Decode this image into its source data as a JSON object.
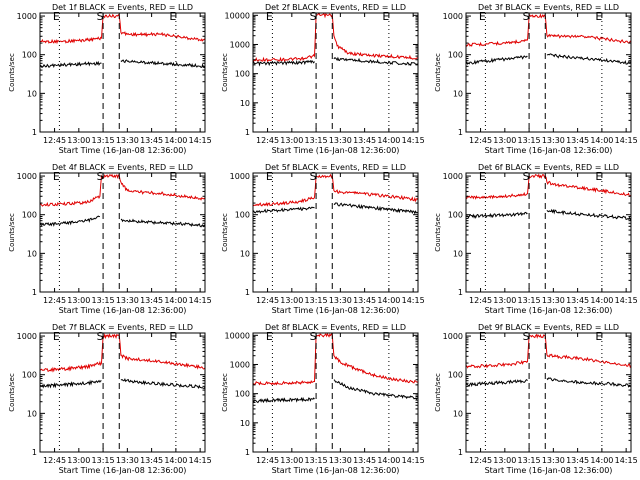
{
  "chart_data": [
    {
      "type": "line",
      "title": "Det 1f BLACK = Events, RED = LLD",
      "xlabel": "Start Time (16-Jan-08 12:36:00)",
      "ylabel": "Counts/sec",
      "x_ticks": [
        "12:45",
        "13:00",
        "13:15",
        "13:30",
        "13:45",
        "14:00",
        "14:15"
      ],
      "y_ticks": [
        "1",
        "10",
        "100",
        "1000"
      ],
      "xlim": [
        "12:36",
        "14:18"
      ],
      "ylim": [
        1,
        1200
      ],
      "y_scale": "log",
      "grid": false,
      "markers": [
        {
          "label": "E",
          "time": "12:48",
          "style": "dotted"
        },
        {
          "label": "S",
          "time": "13:15",
          "style": "dashed"
        },
        {
          "label": "",
          "time": "13:25",
          "style": "dashed"
        },
        {
          "label": "E",
          "time": "14:00",
          "style": "dotted"
        }
      ],
      "series": [
        {
          "name": "LLD",
          "color": "#e00000",
          "x": [
            "12:36",
            "12:50",
            "13:05",
            "13:14",
            "13:15",
            "13:25",
            "13:26",
            "13:30",
            "13:40",
            "13:50",
            "14:00",
            "14:10",
            "14:18"
          ],
          "values": [
            220,
            220,
            240,
            270,
            1000,
            1000,
            380,
            340,
            330,
            340,
            300,
            260,
            240
          ]
        },
        {
          "name": "Events",
          "color": "#000000",
          "x": [
            "12:36",
            "12:50",
            "13:05",
            "13:14",
            "13:25",
            "13:26",
            "13:35",
            "13:50",
            "14:05",
            "14:18"
          ],
          "values": [
            50,
            55,
            58,
            60,
            null,
            70,
            65,
            60,
            55,
            50
          ]
        }
      ]
    },
    {
      "type": "line",
      "title": "Det 2f BLACK = Events, RED = LLD",
      "xlabel": "Start Time (16-Jan-08 12:36:00)",
      "ylabel": "Counts/sec",
      "x_ticks": [
        "12:45",
        "13:00",
        "13:15",
        "13:30",
        "13:45",
        "14:00",
        "14:15"
      ],
      "y_ticks": [
        "1",
        "10",
        "100",
        "1000",
        "10000"
      ],
      "xlim": [
        "12:36",
        "14:18"
      ],
      "ylim": [
        1,
        12000
      ],
      "y_scale": "log",
      "grid": false,
      "markers": [
        {
          "label": "E",
          "time": "12:48",
          "style": "dotted"
        },
        {
          "label": "S",
          "time": "13:15",
          "style": "dashed"
        },
        {
          "label": "",
          "time": "13:25",
          "style": "dashed"
        },
        {
          "label": "E",
          "time": "14:00",
          "style": "dotted"
        }
      ],
      "series": [
        {
          "name": "LLD",
          "color": "#e00000",
          "x": [
            "12:36",
            "12:50",
            "13:05",
            "13:14",
            "13:15",
            "13:25",
            "13:26",
            "13:28",
            "13:35",
            "13:50",
            "14:05",
            "14:18"
          ],
          "values": [
            300,
            300,
            320,
            400,
            10000,
            10000,
            2000,
            900,
            500,
            420,
            380,
            340
          ]
        },
        {
          "name": "Events",
          "color": "#000000",
          "x": [
            "12:36",
            "12:50",
            "13:05",
            "13:14",
            "13:25",
            "13:26",
            "13:35",
            "13:50",
            "14:05",
            "14:18"
          ],
          "values": [
            220,
            230,
            240,
            260,
            null,
            320,
            300,
            260,
            230,
            210
          ]
        }
      ]
    },
    {
      "type": "line",
      "title": "Det 3f BLACK = Events, RED = LLD",
      "xlabel": "Start Time (16-Jan-08 12:36:00)",
      "ylabel": "Counts/sec",
      "x_ticks": [
        "12:45",
        "13:00",
        "13:15",
        "13:30",
        "13:45",
        "14:00",
        "14:15"
      ],
      "y_ticks": [
        "1",
        "10",
        "100",
        "1000"
      ],
      "xlim": [
        "12:36",
        "14:18"
      ],
      "ylim": [
        1,
        1200
      ],
      "y_scale": "log",
      "grid": false,
      "markers": [
        {
          "label": "E",
          "time": "12:48",
          "style": "dotted"
        },
        {
          "label": "S",
          "time": "13:15",
          "style": "dashed"
        },
        {
          "label": "",
          "time": "13:25",
          "style": "dashed"
        },
        {
          "label": "E",
          "time": "14:00",
          "style": "dotted"
        }
      ],
      "series": [
        {
          "name": "LLD",
          "color": "#e00000",
          "x": [
            "12:36",
            "12:50",
            "13:05",
            "13:14",
            "13:15",
            "13:25",
            "13:26",
            "13:30",
            "13:40",
            "13:50",
            "14:00",
            "14:10",
            "14:18"
          ],
          "values": [
            180,
            190,
            210,
            240,
            1000,
            1000,
            320,
            300,
            300,
            290,
            260,
            230,
            210
          ]
        },
        {
          "name": "Events",
          "color": "#000000",
          "x": [
            "12:36",
            "12:50",
            "13:05",
            "13:14",
            "13:25",
            "13:26",
            "13:35",
            "13:50",
            "14:05",
            "14:18"
          ],
          "values": [
            60,
            70,
            80,
            90,
            null,
            100,
            90,
            80,
            70,
            60
          ]
        }
      ]
    },
    {
      "type": "line",
      "title": "Det 4f BLACK = Events, RED = LLD",
      "xlabel": "Start Time (16-Jan-08 12:36:00)",
      "ylabel": "Counts/sec",
      "x_ticks": [
        "12:45",
        "13:00",
        "13:15",
        "13:30",
        "13:45",
        "14:00",
        "14:15"
      ],
      "y_ticks": [
        "1",
        "10",
        "100",
        "1000"
      ],
      "xlim": [
        "12:36",
        "14:18"
      ],
      "ylim": [
        1,
        1200
      ],
      "y_scale": "log",
      "grid": false,
      "markers": [
        {
          "label": "E",
          "time": "12:48",
          "style": "dotted"
        },
        {
          "label": "S",
          "time": "13:15",
          "style": "dashed"
        },
        {
          "label": "",
          "time": "13:25",
          "style": "dashed"
        },
        {
          "label": "E",
          "time": "14:00",
          "style": "dotted"
        }
      ],
      "series": [
        {
          "name": "LLD",
          "color": "#e00000",
          "x": [
            "12:36",
            "12:50",
            "13:05",
            "13:13",
            "13:14",
            "13:25",
            "13:26",
            "13:30",
            "13:40",
            "13:50",
            "14:00",
            "14:10",
            "14:18"
          ],
          "values": [
            180,
            190,
            210,
            300,
            1000,
            1000,
            700,
            420,
            380,
            360,
            320,
            280,
            250
          ]
        },
        {
          "name": "Events",
          "color": "#000000",
          "x": [
            "12:36",
            "12:50",
            "13:05",
            "13:13",
            "13:25",
            "13:26",
            "13:35",
            "13:50",
            "14:05",
            "14:18"
          ],
          "values": [
            55,
            60,
            70,
            90,
            null,
            75,
            68,
            62,
            58,
            52
          ]
        }
      ]
    },
    {
      "type": "line",
      "title": "Det 5f BLACK = Events, RED = LLD",
      "xlabel": "Start Time (16-Jan-08 12:36:00)",
      "ylabel": "Counts/sec",
      "x_ticks": [
        "12:45",
        "13:00",
        "13:15",
        "13:30",
        "13:45",
        "14:00",
        "14:15"
      ],
      "y_ticks": [
        "1",
        "10",
        "100",
        "1000"
      ],
      "xlim": [
        "12:36",
        "14:18"
      ],
      "ylim": [
        1,
        1200
      ],
      "y_scale": "log",
      "grid": false,
      "markers": [
        {
          "label": "E",
          "time": "12:48",
          "style": "dotted"
        },
        {
          "label": "S",
          "time": "13:15",
          "style": "dashed"
        },
        {
          "label": "",
          "time": "13:25",
          "style": "dashed"
        },
        {
          "label": "E",
          "time": "14:00",
          "style": "dotted"
        }
      ],
      "series": [
        {
          "name": "LLD",
          "color": "#e00000",
          "x": [
            "12:36",
            "12:50",
            "13:05",
            "13:14",
            "13:15",
            "13:25",
            "13:26",
            "13:30",
            "13:40",
            "13:50",
            "14:00",
            "14:10",
            "14:18"
          ],
          "values": [
            180,
            190,
            220,
            280,
            1000,
            1000,
            420,
            380,
            360,
            330,
            300,
            270,
            240
          ]
        },
        {
          "name": "Events",
          "color": "#000000",
          "x": [
            "12:36",
            "12:50",
            "13:05",
            "13:14",
            "13:25",
            "13:26",
            "13:35",
            "13:50",
            "14:05",
            "14:18"
          ],
          "values": [
            120,
            130,
            140,
            150,
            null,
            190,
            175,
            150,
            130,
            115
          ]
        }
      ]
    },
    {
      "type": "line",
      "title": "Det 6f BLACK = Events, RED = LLD",
      "xlabel": "Start Time (16-Jan-08 12:36:00)",
      "ylabel": "Counts/sec",
      "x_ticks": [
        "12:45",
        "13:00",
        "13:15",
        "13:30",
        "13:45",
        "14:00",
        "14:15"
      ],
      "y_ticks": [
        "1",
        "10",
        "100",
        "1000"
      ],
      "xlim": [
        "12:36",
        "14:18"
      ],
      "ylim": [
        1,
        1200
      ],
      "y_scale": "log",
      "grid": false,
      "markers": [
        {
          "label": "E",
          "time": "12:48",
          "style": "dotted"
        },
        {
          "label": "S",
          "time": "13:15",
          "style": "dashed"
        },
        {
          "label": "",
          "time": "13:25",
          "style": "dashed"
        },
        {
          "label": "E",
          "time": "14:00",
          "style": "dotted"
        }
      ],
      "series": [
        {
          "name": "LLD",
          "color": "#e00000",
          "x": [
            "12:36",
            "12:50",
            "13:05",
            "13:14",
            "13:15",
            "13:25",
            "13:26",
            "13:30",
            "13:40",
            "13:50",
            "14:00",
            "14:10",
            "14:18"
          ],
          "values": [
            280,
            290,
            310,
            350,
            1000,
            1000,
            700,
            600,
            550,
            480,
            420,
            360,
            320
          ]
        },
        {
          "name": "Events",
          "color": "#000000",
          "x": [
            "12:36",
            "12:50",
            "13:05",
            "13:14",
            "13:25",
            "13:26",
            "13:35",
            "13:50",
            "14:05",
            "14:18"
          ],
          "values": [
            90,
            95,
            100,
            110,
            null,
            130,
            115,
            100,
            90,
            80
          ]
        }
      ]
    },
    {
      "type": "line",
      "title": "Det 7f BLACK = Events, RED = LLD",
      "xlabel": "Start Time (16-Jan-08 12:36:00)",
      "ylabel": "Counts/sec",
      "x_ticks": [
        "12:45",
        "13:00",
        "13:15",
        "13:30",
        "13:45",
        "14:00",
        "14:15"
      ],
      "y_ticks": [
        "1",
        "10",
        "100",
        "1000"
      ],
      "xlim": [
        "12:36",
        "14:18"
      ],
      "ylim": [
        1,
        1200
      ],
      "y_scale": "log",
      "grid": false,
      "markers": [
        {
          "label": "E",
          "time": "12:48",
          "style": "dotted"
        },
        {
          "label": "S",
          "time": "13:15",
          "style": "dashed"
        },
        {
          "label": "",
          "time": "13:25",
          "style": "dashed"
        },
        {
          "label": "E",
          "time": "14:00",
          "style": "dotted"
        }
      ],
      "series": [
        {
          "name": "LLD",
          "color": "#e00000",
          "x": [
            "12:36",
            "12:50",
            "13:05",
            "13:14",
            "13:15",
            "13:25",
            "13:26",
            "13:30",
            "13:40",
            "13:50",
            "14:00",
            "14:10",
            "14:18"
          ],
          "values": [
            130,
            140,
            160,
            200,
            1000,
            1000,
            320,
            260,
            240,
            220,
            190,
            170,
            150
          ]
        },
        {
          "name": "Events",
          "color": "#000000",
          "x": [
            "12:36",
            "12:50",
            "13:05",
            "13:14",
            "13:25",
            "13:26",
            "13:35",
            "13:50",
            "14:05",
            "14:18"
          ],
          "values": [
            50,
            55,
            60,
            70,
            null,
            75,
            65,
            58,
            52,
            48
          ]
        }
      ]
    },
    {
      "type": "line",
      "title": "Det 8f BLACK = Events, RED = LLD",
      "xlabel": "Start Time (16-Jan-08 12:36:00)",
      "ylabel": "Counts/sec",
      "x_ticks": [
        "12:45",
        "13:00",
        "13:15",
        "13:30",
        "13:45",
        "14:00",
        "14:15"
      ],
      "y_ticks": [
        "1",
        "10",
        "100",
        "1000",
        "10000"
      ],
      "xlim": [
        "12:36",
        "14:18"
      ],
      "ylim": [
        1,
        12000
      ],
      "y_scale": "log",
      "grid": false,
      "markers": [
        {
          "label": "E",
          "time": "12:48",
          "style": "dotted"
        },
        {
          "label": "S",
          "time": "13:15",
          "style": "dashed"
        },
        {
          "label": "",
          "time": "13:25",
          "style": "dashed"
        },
        {
          "label": "E",
          "time": "14:00",
          "style": "dotted"
        }
      ],
      "series": [
        {
          "name": "LLD",
          "color": "#e00000",
          "x": [
            "12:36",
            "12:50",
            "13:05",
            "13:14",
            "13:15",
            "13:25",
            "13:26",
            "13:30",
            "13:40",
            "13:50",
            "14:00",
            "14:10",
            "14:18"
          ],
          "values": [
            230,
            230,
            240,
            260,
            10000,
            10000,
            2000,
            1200,
            700,
            450,
            330,
            270,
            240
          ]
        },
        {
          "name": "Events",
          "color": "#000000",
          "x": [
            "12:36",
            "12:50",
            "13:05",
            "13:14",
            "13:25",
            "13:26",
            "13:35",
            "13:50",
            "14:05",
            "14:18"
          ],
          "values": [
            55,
            60,
            62,
            65,
            null,
            300,
            160,
            100,
            80,
            70
          ]
        }
      ]
    },
    {
      "type": "line",
      "title": "Det 9f BLACK = Events, RED = LLD",
      "xlabel": "Start Time (16-Jan-08 12:36:00)",
      "ylabel": "Counts/sec",
      "x_ticks": [
        "12:45",
        "13:00",
        "13:15",
        "13:30",
        "13:45",
        "14:00",
        "14:15"
      ],
      "y_ticks": [
        "1",
        "10",
        "100",
        "1000"
      ],
      "xlim": [
        "12:36",
        "14:18"
      ],
      "ylim": [
        1,
        1200
      ],
      "y_scale": "log",
      "grid": false,
      "markers": [
        {
          "label": "E",
          "time": "12:48",
          "style": "dotted"
        },
        {
          "label": "S",
          "time": "13:15",
          "style": "dashed"
        },
        {
          "label": "",
          "time": "13:25",
          "style": "dashed"
        },
        {
          "label": "E",
          "time": "14:00",
          "style": "dotted"
        }
      ],
      "series": [
        {
          "name": "LLD",
          "color": "#e00000",
          "x": [
            "12:36",
            "12:50",
            "13:05",
            "13:14",
            "13:15",
            "13:25",
            "13:26",
            "13:30",
            "13:40",
            "13:50",
            "14:00",
            "14:10",
            "14:18"
          ],
          "values": [
            160,
            170,
            190,
            220,
            1000,
            1000,
            330,
            300,
            280,
            250,
            220,
            190,
            170
          ]
        },
        {
          "name": "Events",
          "color": "#000000",
          "x": [
            "12:36",
            "12:50",
            "13:05",
            "13:14",
            "13:25",
            "13:26",
            "13:35",
            "13:50",
            "14:05",
            "14:18"
          ],
          "values": [
            55,
            60,
            65,
            70,
            null,
            80,
            70,
            62,
            58,
            52
          ]
        }
      ]
    }
  ]
}
